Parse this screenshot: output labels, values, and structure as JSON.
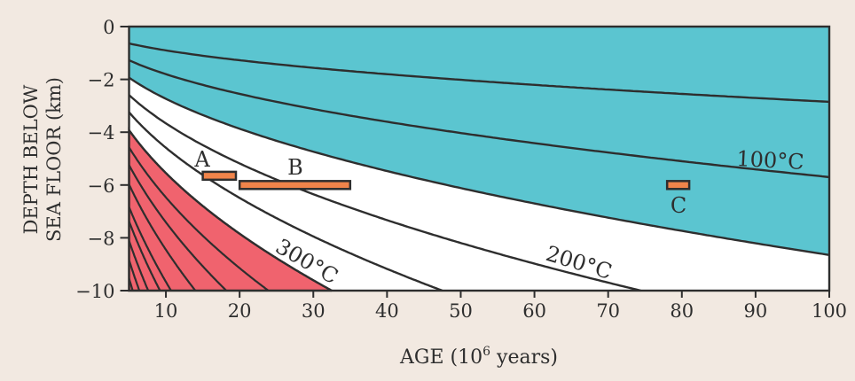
{
  "chart_data": {
    "type": "line",
    "title": "",
    "xlabel": "AGE (10",
    "xlabel_sup": "6",
    "xlabel_tail": " years)",
    "ylabel_line1": "DEPTH BELOW",
    "ylabel_line2": "SEA FLOOR (km)",
    "xlim": [
      5,
      100
    ],
    "ylim": [
      -10,
      0
    ],
    "xticks": [
      10,
      20,
      30,
      40,
      50,
      60,
      70,
      80,
      90,
      100
    ],
    "yticks": [
      0,
      -2,
      -4,
      -6,
      -8,
      -10
    ],
    "ytick_labels": [
      "0",
      "−2",
      "−4",
      "−6",
      "−8",
      "−10"
    ],
    "model": "depth = k * sqrt(age)",
    "isotherms": [
      {
        "name": "upper isotherm",
        "k": 0.285
      },
      {
        "name": "100°C",
        "k": 0.57,
        "label": "100°C"
      },
      {
        "name": "teal lower boundary",
        "k": 0.865
      },
      {
        "name": "200°C",
        "k": 1.159,
        "label": "200°C"
      },
      {
        "name": "300°C",
        "k": 1.451,
        "label": "300°C"
      },
      {
        "name": "red zone boundary",
        "k": 1.754
      }
    ],
    "red_zone_lines_bottom_age": [
      23.9,
      18.2,
      14.0,
      10.7,
      9.2,
      7.6,
      6.4,
      5.5
    ],
    "boxes": [
      {
        "label": "A",
        "age": [
          15,
          19.5
        ],
        "depth": [
          -5.5,
          -5.8
        ]
      },
      {
        "label": "B",
        "age": [
          20,
          35
        ],
        "depth": [
          -5.85,
          -6.15
        ]
      },
      {
        "label": "C",
        "age": [
          78,
          81
        ],
        "depth": [
          -5.85,
          -6.15
        ]
      }
    ],
    "colors": {
      "teal": "#5bc5d0",
      "red": "#f0636e",
      "box": "#f0844a",
      "line": "#2e2e2e",
      "background": "#f2e9e1"
    }
  }
}
